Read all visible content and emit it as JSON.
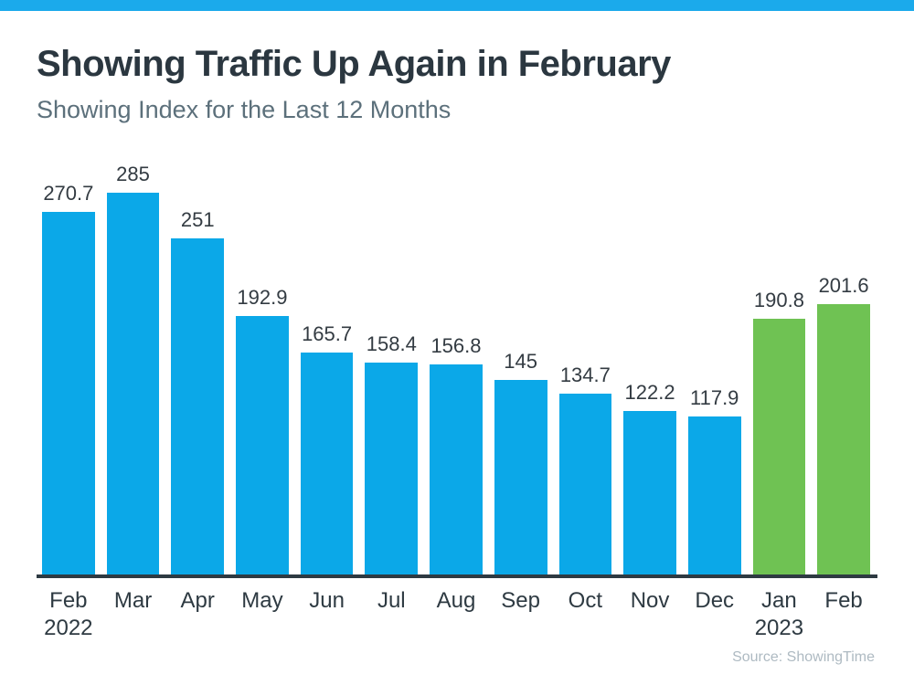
{
  "page": {
    "top_bar_color": "#1baaeb",
    "background": "#ffffff"
  },
  "header": {
    "title": "Showing Traffic Up Again in February",
    "subtitle": "Showing Index for the Last 12 Months"
  },
  "chart_data": {
    "type": "bar",
    "title": "Showing Traffic Up Again in February",
    "subtitle": "Showing Index for the Last 12 Months",
    "categories": [
      "Feb",
      "Mar",
      "Apr",
      "May",
      "Jun",
      "Jul",
      "Aug",
      "Sep",
      "Oct",
      "Nov",
      "Dec",
      "Jan",
      "Feb"
    ],
    "year_labels": [
      "2022",
      "",
      "",
      "",
      "",
      "",
      "",
      "",
      "",
      "",
      "",
      "2023",
      ""
    ],
    "values": [
      270.7,
      285,
      251,
      192.9,
      165.7,
      158.4,
      156.8,
      145,
      134.7,
      122.2,
      117.9,
      190.8,
      201.6
    ],
    "value_labels": [
      "270.7",
      "285",
      "251",
      "192.9",
      "165.7",
      "158.4",
      "156.8",
      "145",
      "134.7",
      "122.2",
      "117.9",
      "190.8",
      "201.6"
    ],
    "highlight_indices": [
      11,
      12
    ],
    "colors": {
      "default": "#0ba8e8",
      "highlight": "#6fc253",
      "axis": "#2e3a42",
      "value_label": "#333b42"
    },
    "ylim": [
      0,
      285
    ],
    "grid": false,
    "legend": "none",
    "xlabel": "",
    "ylabel": "",
    "source": "Source: ShowingTime"
  }
}
